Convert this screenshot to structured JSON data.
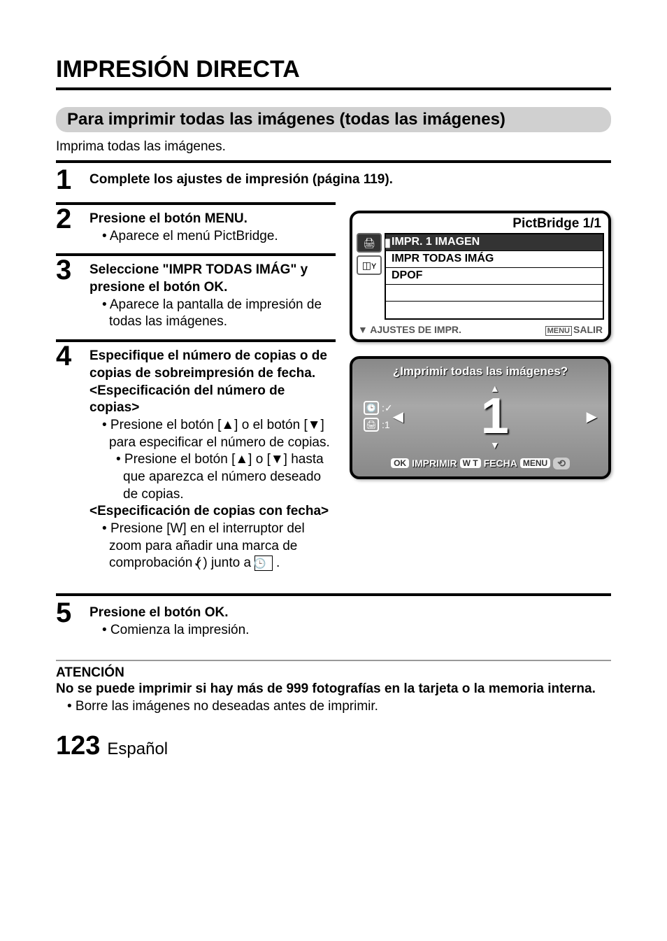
{
  "title": "IMPRESIÓN DIRECTA",
  "section_header": "Para imprimir todas las imágenes (todas las imágenes)",
  "section_intro": "Imprima todas las imágenes.",
  "steps": {
    "s1": {
      "num": "1",
      "heading": "Complete los ajustes de impresión (página 119)."
    },
    "s2": {
      "num": "2",
      "heading": "Presione el botón MENU.",
      "b1": "• Aparece el menú PictBridge."
    },
    "s3": {
      "num": "3",
      "heading": "Seleccione \"IMPR TODAS IMÁG\" y presione el botón OK.",
      "b1": "• Aparece la pantalla de impresión de todas las imágenes."
    },
    "s4": {
      "num": "4",
      "heading": "Especifique el número de copias o de copias de sobreimpresión de fecha.",
      "sub1_heading": "<Especificación del número de copias>",
      "sub1_b1": "• Presione el botón [▲] o el botón [▼] para especificar el número de copias.",
      "sub1_b1_sub": "• Presione el botón [▲] o [▼] hasta que aparezca el número deseado de copias.",
      "sub2_heading": "<Especificación de copias con fecha>",
      "sub2_b1_pre": "Presione [W] en el interruptor del zoom para añadir una marca de comprobación (",
      "sub2_b1_post": ") junto a"
    },
    "s5": {
      "num": "5",
      "heading": "Presione el botón OK.",
      "b1": "• Comienza la impresión."
    }
  },
  "lcd1": {
    "title": "PictBridge 1/1",
    "tab1_icon": "🖨",
    "tab2_icon": "◫ʏ",
    "item1": "IMPR. 1 IMAGEN",
    "item2": "IMPR TODAS IMÁG",
    "item3": "DPOF",
    "footer_left": "▼ AJUSTES DE IMPR.",
    "footer_menu": "MENU",
    "footer_right": "SALIR"
  },
  "lcd2": {
    "question": "¿Imprimir todas las imágenes?",
    "icon_clock_val": ":✓",
    "icon_print_val": ":1",
    "bignum": "1",
    "badge_ok": "OK",
    "label_imprimir": "IMPRIMIR",
    "badge_wt": "W T",
    "label_fecha": "FECHA",
    "badge_menu": "MENU",
    "back_icon": "⟲"
  },
  "atencion": {
    "title": "ATENCIÓN",
    "text": "No se puede imprimir si hay más de 999 fotografías en la tarjeta o la memoria interna.",
    "bullet": "• Borre las imágenes no deseadas antes de imprimir."
  },
  "footer": {
    "pagenum": "123",
    "lang": "Español"
  }
}
